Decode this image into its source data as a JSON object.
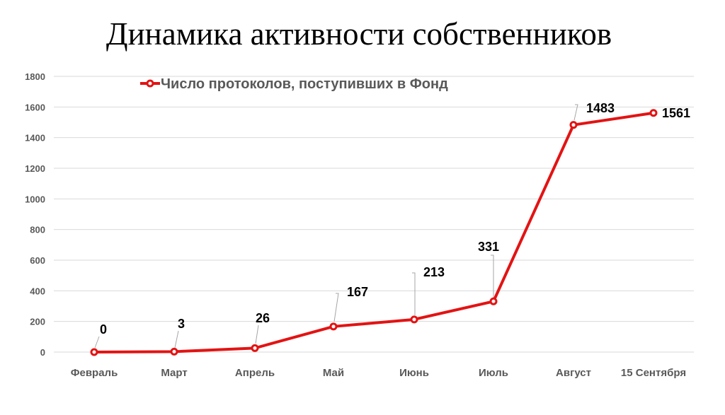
{
  "chart_data": {
    "type": "line",
    "title": "Динамика активности собственников",
    "categories": [
      "Февраль",
      "Март",
      "Апрель",
      "Май",
      "Июнь",
      "Июль",
      "Август",
      "15 Сентября"
    ],
    "series": [
      {
        "name": "Число протоколов, поступивших в Фонд",
        "values": [
          0,
          3,
          26,
          167,
          213,
          331,
          1483,
          1561
        ],
        "color": "#e31313"
      }
    ],
    "data_labels": [
      "0",
      "3",
      "26",
      "167",
      "213",
      "331",
      "1483",
      "1561"
    ],
    "ylim": [
      0,
      1800
    ],
    "yticks": [
      0,
      200,
      400,
      600,
      800,
      1000,
      1200,
      1400,
      1600,
      1800
    ],
    "ytick_labels": [
      "0",
      "200",
      "400",
      "600",
      "800",
      "1000",
      "1200",
      "1400",
      "1600",
      "1800"
    ],
    "grid": true,
    "legend_position": "top",
    "xlabel": "",
    "ylabel": ""
  }
}
